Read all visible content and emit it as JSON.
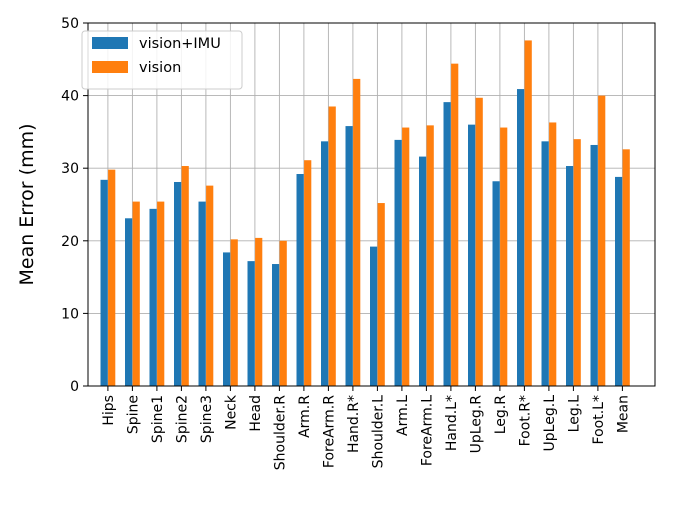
{
  "chart_data": {
    "type": "bar",
    "title": "",
    "xlabel": "",
    "ylabel": "Mean Error (mm)",
    "ylim": [
      0,
      50
    ],
    "yticks": [
      0,
      10,
      20,
      30,
      40,
      50
    ],
    "grid": true,
    "legend_position": "top-left",
    "categories": [
      "Hips",
      "Spine",
      "Spine1",
      "Spine2",
      "Spine3",
      "Neck",
      "Head",
      "Shoulder.R",
      "Arm.R",
      "ForeArm.R",
      "Hand.R*",
      "Shoulder.L",
      "Arm.L",
      "ForeArm.L",
      "Hand.L*",
      "UpLeg.R",
      "Leg.R",
      "Foot.R*",
      "UpLeg.L",
      "Leg.L",
      "Foot.L*",
      "Mean"
    ],
    "series": [
      {
        "name": "vision+IMU",
        "color": "#1f77b4",
        "values": [
          28.4,
          23.1,
          24.4,
          28.1,
          25.4,
          18.4,
          17.2,
          16.8,
          29.2,
          33.7,
          35.8,
          19.2,
          33.9,
          31.6,
          39.1,
          36.0,
          28.2,
          40.9,
          33.7,
          30.3,
          33.2,
          28.8
        ]
      },
      {
        "name": "vision",
        "color": "#ff7f0e",
        "values": [
          29.8,
          25.4,
          25.4,
          30.3,
          27.6,
          20.2,
          20.4,
          20.0,
          31.1,
          38.5,
          42.3,
          25.2,
          35.6,
          35.9,
          44.4,
          39.7,
          35.6,
          47.6,
          36.3,
          34.0,
          40.0,
          32.6
        ]
      }
    ]
  }
}
